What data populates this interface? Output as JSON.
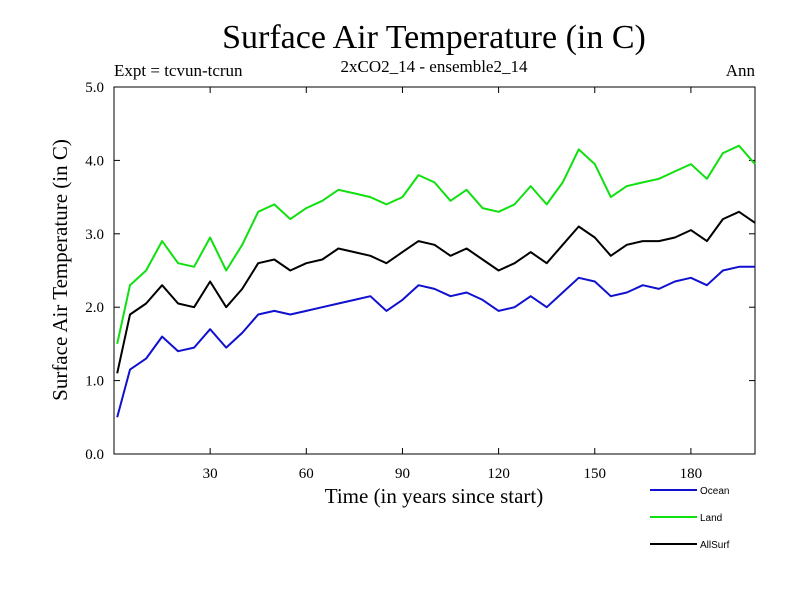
{
  "chart_data": {
    "type": "line",
    "title": "Surface Air Temperature (in C)",
    "subtitle_left": "Expt = tcvun-tcrun",
    "subtitle_center": "2xCO2_14 - ensemble2_14",
    "subtitle_right": "Ann",
    "xlabel": "Time (in years since start)",
    "ylabel": "Surface Air Temperature (in C)",
    "xlim": [
      0,
      200
    ],
    "ylim": [
      0.0,
      5.0
    ],
    "x_ticks": [
      30,
      60,
      90,
      120,
      150,
      180
    ],
    "x_tick_labels": [
      "30",
      "60",
      "90",
      "120",
      "150",
      "180"
    ],
    "y_ticks": [
      0,
      1,
      2,
      3,
      4,
      5
    ],
    "y_tick_labels": [
      "0.0",
      "1.0",
      "2.0",
      "3.0",
      "4.0",
      "5.0"
    ],
    "legend_position": "bottom-right, outside plot",
    "x": [
      1,
      5,
      10,
      15,
      20,
      25,
      30,
      35,
      40,
      45,
      50,
      55,
      60,
      65,
      70,
      75,
      80,
      85,
      90,
      95,
      100,
      105,
      110,
      115,
      120,
      125,
      130,
      135,
      140,
      145,
      150,
      155,
      160,
      165,
      170,
      175,
      180,
      185,
      190,
      195,
      200
    ],
    "series": [
      {
        "name": "Ocean",
        "color": "#1010d0",
        "values": [
          0.5,
          1.15,
          1.3,
          1.6,
          1.4,
          1.45,
          1.7,
          1.45,
          1.65,
          1.9,
          1.95,
          1.9,
          1.95,
          2.0,
          2.05,
          2.1,
          2.15,
          1.95,
          2.1,
          2.3,
          2.25,
          2.15,
          2.2,
          2.1,
          1.95,
          2.0,
          2.15,
          2.0,
          2.2,
          2.4,
          2.35,
          2.15,
          2.2,
          2.3,
          2.25,
          2.35,
          2.4,
          2.3,
          2.5,
          2.55,
          2.55
        ]
      },
      {
        "name": "Land",
        "color": "#10e010",
        "values": [
          1.5,
          2.3,
          2.5,
          2.9,
          2.6,
          2.55,
          2.95,
          2.5,
          2.85,
          3.3,
          3.4,
          3.2,
          3.35,
          3.45,
          3.6,
          3.55,
          3.5,
          3.4,
          3.5,
          3.8,
          3.7,
          3.45,
          3.6,
          3.35,
          3.3,
          3.4,
          3.65,
          3.4,
          3.7,
          4.15,
          3.95,
          3.5,
          3.65,
          3.7,
          3.75,
          3.85,
          3.95,
          3.75,
          4.1,
          4.2,
          3.95
        ]
      },
      {
        "name": "AllSurf",
        "color": "#000000",
        "values": [
          1.1,
          1.9,
          2.05,
          2.3,
          2.05,
          2.0,
          2.35,
          2.0,
          2.25,
          2.6,
          2.65,
          2.5,
          2.6,
          2.65,
          2.8,
          2.75,
          2.7,
          2.6,
          2.75,
          2.9,
          2.85,
          2.7,
          2.8,
          2.65,
          2.5,
          2.6,
          2.75,
          2.6,
          2.85,
          3.1,
          2.95,
          2.7,
          2.85,
          2.9,
          2.9,
          2.95,
          3.05,
          2.9,
          3.2,
          3.3,
          3.15
        ]
      }
    ]
  }
}
